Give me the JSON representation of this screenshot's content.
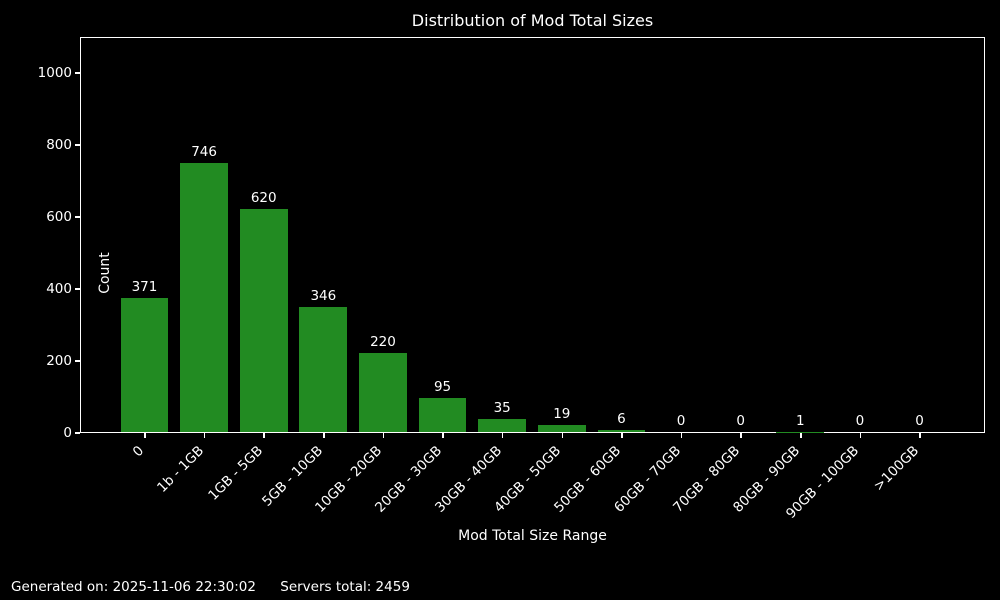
{
  "chart_data": {
    "type": "bar",
    "title": "Distribution of Mod Total Sizes",
    "xlabel": "Mod Total Size Range",
    "ylabel": "Count",
    "categories": [
      "0",
      "1b - 1GB",
      "1GB - 5GB",
      "5GB - 10GB",
      "10GB - 20GB",
      "20GB - 30GB",
      "30GB - 40GB",
      "40GB - 50GB",
      "50GB - 60GB",
      "60GB - 70GB",
      "70GB - 80GB",
      "80GB - 90GB",
      "90GB - 100GB",
      ">100GB"
    ],
    "values": [
      371,
      746,
      620,
      346,
      220,
      95,
      35,
      19,
      6,
      0,
      0,
      1,
      0,
      0
    ],
    "yticks": [
      0,
      200,
      400,
      600,
      800,
      1000
    ],
    "ylim": [
      0,
      1100
    ],
    "bar_value_labels": true,
    "grid": "off",
    "legend": "none",
    "bar_color": "#228B22",
    "background_color": "#000000",
    "text_color": "#ffffff"
  },
  "footer": {
    "generated_on": "Generated on: 2025-11-06 22:30:02",
    "servers_total": "Servers total: 2459"
  }
}
